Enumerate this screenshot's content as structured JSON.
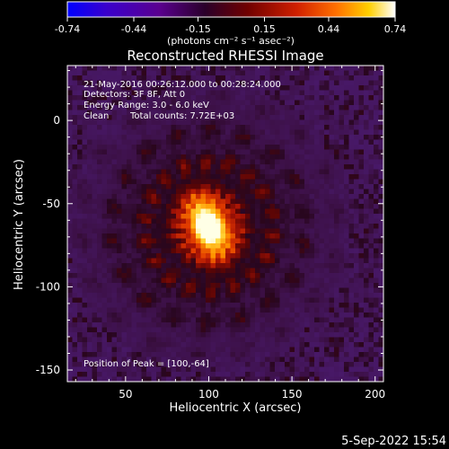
{
  "chart_data": {
    "type": "heatmap",
    "title": "Reconstructed RHESSI Image",
    "xlabel": "Heliocentric X (arcsec)",
    "ylabel": "Heliocentric Y (arcsec)",
    "xlim": [
      15,
      205
    ],
    "ylim": [
      -157,
      33
    ],
    "x_ticks": [
      "50",
      "100",
      "150",
      "200"
    ],
    "y_ticks": [
      "0",
      "-50",
      "-100",
      "-150"
    ],
    "colorbar": {
      "ticks": [
        "-0.74",
        "-0.44",
        "-0.15",
        "0.15",
        "0.44",
        "0.74"
      ],
      "range": [
        -0.74,
        0.74
      ],
      "unit_label": "(photons cm⁻² s⁻¹ asec⁻²)",
      "colormap": [
        "#0000ff",
        "#5a008f",
        "#2a002a",
        "#600000",
        "#c01000",
        "#ff6000",
        "#ffc000",
        "#ffffff"
      ]
    },
    "annotations": {
      "time_range": "21-May-2016 00:26:12.000 to 00:28:24.000",
      "detectors": "Detectors: 3F 8F, Att 0",
      "energy": "Energy Range: 3.0 - 6.0 keV",
      "method": "Clean",
      "counts": "Total counts: 7.72E+03",
      "peak": "Position of Peak = [100,-64]"
    },
    "peak": {
      "x": 100,
      "y": -64
    },
    "footer_date": "5-Sep-2022 15:54"
  }
}
